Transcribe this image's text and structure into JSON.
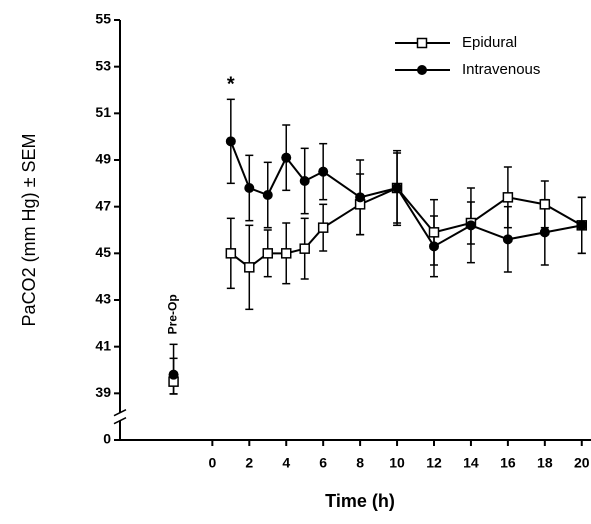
{
  "chart_data": {
    "type": "line",
    "y_label": "PaCO2 (mm Hg) ± SEM",
    "x_label": "Time (h)",
    "x": [
      1,
      2,
      3,
      4,
      5,
      6,
      8,
      10,
      12,
      14,
      16,
      18,
      20
    ],
    "series": [
      {
        "name": "Epidural",
        "marker": "open-square",
        "color": "#000",
        "values": [
          45.0,
          44.4,
          45.0,
          45.0,
          45.2,
          46.1,
          47.1,
          47.8,
          45.9,
          46.3,
          47.4,
          47.1,
          46.2
        ],
        "errors": [
          1.5,
          1.8,
          1.0,
          1.3,
          1.3,
          1.0,
          1.3,
          1.5,
          1.4,
          0.9,
          1.3,
          1.0,
          1.2
        ]
      },
      {
        "name": "Intravenous",
        "marker": "filled-circle",
        "color": "#000",
        "values": [
          49.8,
          47.8,
          47.5,
          49.1,
          48.1,
          48.5,
          47.4,
          47.8,
          45.3,
          46.2,
          45.6,
          45.9,
          46.2
        ],
        "errors": [
          1.8,
          1.4,
          1.4,
          1.4,
          1.4,
          1.2,
          1.6,
          1.6,
          1.3,
          1.6,
          1.4,
          1.4,
          1.2
        ]
      }
    ],
    "preop": {
      "label": "Pre-Op",
      "x": -2.1,
      "values": [
        39.5,
        39.8
      ],
      "errors": [
        1.0,
        1.3
      ]
    },
    "annotation": {
      "text": "*",
      "x": 1
    },
    "xlim": [
      -5,
      20.5
    ],
    "xticks": [
      0,
      2,
      4,
      6,
      8,
      10,
      12,
      14,
      16,
      18,
      20
    ],
    "ylim": [
      0,
      55
    ],
    "yticks": [
      0,
      39,
      41,
      43,
      45,
      47,
      49,
      51,
      53,
      55
    ],
    "y_axis_break": true,
    "legend": "top-right"
  }
}
